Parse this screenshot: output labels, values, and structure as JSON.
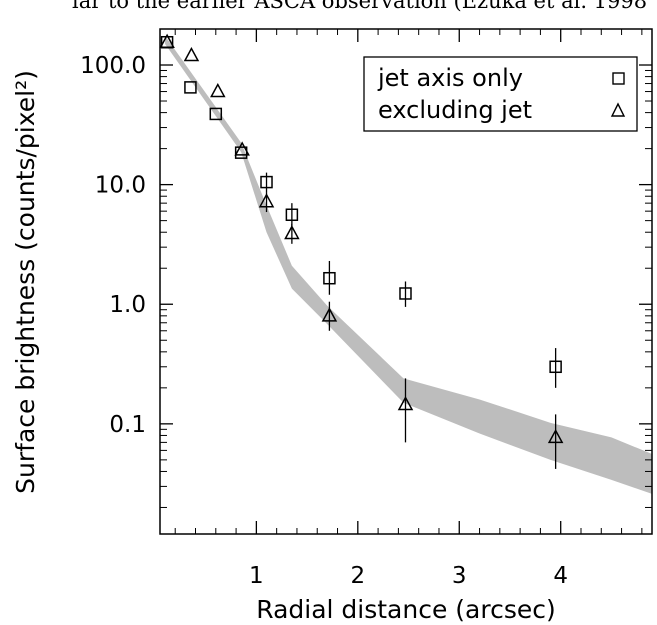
{
  "caption_fragment": "lar to the earlier ASCA observation (Ezuka et al. 1998",
  "chart_data": {
    "type": "scatter",
    "title": "",
    "xlabel": "Radial distance (arcsec)",
    "ylabel": "Surface brightness (counts/pixel²)",
    "xlim": [
      0.05,
      4.9
    ],
    "ylim": [
      0.012,
      200
    ],
    "yscale": "log",
    "x_ticks": [
      1,
      2,
      3,
      4
    ],
    "x_tick_labels": [
      "1",
      "2",
      "3",
      "4"
    ],
    "y_ticks": [
      0.1,
      1,
      10,
      100
    ],
    "y_tick_labels": [
      "0.1",
      "1.0",
      "10.0",
      "100.0"
    ],
    "legend_position": "top-right",
    "band": {
      "color": "#bdbdbd",
      "x": [
        0.1,
        0.85,
        1.1,
        1.35,
        1.7,
        2.45,
        3.2,
        3.9,
        4.5,
        4.9
      ],
      "upper": [
        175,
        22.4,
        6.7,
        2.1,
        0.97,
        0.24,
        0.16,
        0.102,
        0.077,
        0.056
      ],
      "lower": [
        150,
        18.7,
        4.0,
        1.35,
        0.68,
        0.15,
        0.083,
        0.05,
        0.034,
        0.026
      ]
    },
    "series": [
      {
        "name": "jet axis only",
        "marker": "square",
        "points": [
          {
            "x": 0.12,
            "y": 155
          },
          {
            "x": 0.35,
            "y": 65
          },
          {
            "x": 0.6,
            "y": 39
          },
          {
            "x": 0.85,
            "y": 18.5
          },
          {
            "x": 1.1,
            "y": 10.5,
            "err": [
              8.6,
              12.6
            ]
          },
          {
            "x": 1.35,
            "y": 5.6,
            "err": [
              4.5,
              7.0
            ]
          },
          {
            "x": 1.72,
            "y": 1.65,
            "err": [
              1.2,
              2.3
            ]
          },
          {
            "x": 2.47,
            "y": 1.23,
            "err": [
              0.95,
              1.55
            ]
          },
          {
            "x": 3.95,
            "y": 0.3,
            "err": [
              0.2,
              0.43
            ]
          }
        ]
      },
      {
        "name": "excluding jet",
        "marker": "triangle",
        "points": [
          {
            "x": 0.12,
            "y": 155
          },
          {
            "x": 0.36,
            "y": 120
          },
          {
            "x": 0.62,
            "y": 60
          },
          {
            "x": 0.86,
            "y": 19.5
          },
          {
            "x": 1.1,
            "y": 7.2,
            "err": [
              5.9,
              8.6
            ]
          },
          {
            "x": 1.35,
            "y": 3.9,
            "err": [
              3.2,
              4.7
            ]
          },
          {
            "x": 1.72,
            "y": 0.8,
            "err": [
              0.6,
              1.05
            ]
          },
          {
            "x": 2.47,
            "y": 0.145,
            "err": [
              0.07,
              0.24
            ]
          },
          {
            "x": 3.95,
            "y": 0.077,
            "err": [
              0.042,
              0.12
            ]
          }
        ]
      }
    ]
  }
}
